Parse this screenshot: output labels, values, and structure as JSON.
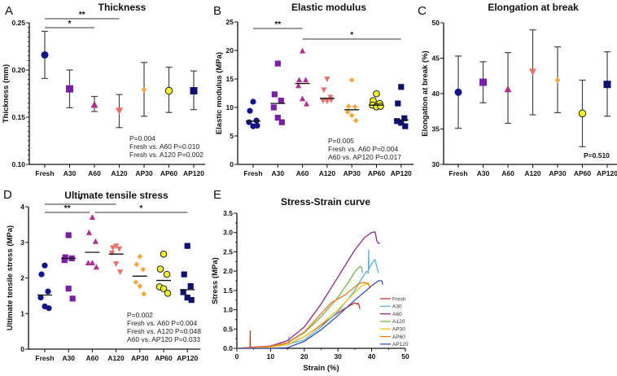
{
  "figure": {
    "categories": [
      "Fresh",
      "A30",
      "A60",
      "A120",
      "AP30",
      "AP60",
      "AP120"
    ],
    "group_styles": [
      {
        "name": "Fresh",
        "marker": "circle",
        "color": "#14148a"
      },
      {
        "name": "A30",
        "marker": "square",
        "color": "#7a1fa8"
      },
      {
        "name": "A60",
        "marker": "triangle-up",
        "color": "#b0308f"
      },
      {
        "name": "A120",
        "marker": "triangle-down",
        "color": "#e8706a"
      },
      {
        "name": "AP30",
        "marker": "diamond",
        "color": "#f7a740"
      },
      {
        "name": "AP60",
        "marker": "circle-outlined",
        "color": "#f2f22a"
      },
      {
        "name": "AP120",
        "marker": "square",
        "color": "#101070"
      }
    ]
  },
  "chart_data": [
    {
      "id": "A",
      "letter": "A",
      "type": "scatter",
      "title": "Thickness",
      "xlabel": "",
      "ylabel": "Thickness (mm)",
      "ylim": [
        0.1,
        0.25
      ],
      "yticks": [
        0.1,
        0.15,
        0.2,
        0.25
      ],
      "ytick_labels": [
        "0.10",
        "0.15",
        "0.20",
        "0.25"
      ],
      "categories": [
        "Fresh",
        "A30",
        "A60",
        "A120",
        "AP30",
        "AP60",
        "AP120"
      ],
      "mean": [
        0.216,
        0.18,
        0.163,
        0.157,
        0.179,
        0.178,
        0.178
      ],
      "error_low": [
        0.191,
        0.16,
        0.156,
        0.139,
        0.151,
        0.155,
        0.158
      ],
      "error_high": [
        0.241,
        0.2,
        0.172,
        0.174,
        0.208,
        0.203,
        0.199
      ],
      "significance": [
        {
          "from": "Fresh",
          "to": "A60",
          "label": "*"
        },
        {
          "from": "Fresh",
          "to": "A120",
          "label": "**"
        }
      ],
      "annotations": [
        "P=0.004",
        "Fresh vs. A60 P=0.010",
        "Fresh vs. A120 P=0.002"
      ],
      "grid": false
    },
    {
      "id": "B",
      "letter": "B",
      "type": "scatter",
      "title": "Elastic modulus",
      "xlabel": "",
      "ylabel": "Elastic modulus (MPa)",
      "ylim": [
        0,
        25
      ],
      "yticks": [
        0,
        5,
        10,
        15,
        20,
        25
      ],
      "ytick_labels": [
        "0",
        "5",
        "10",
        "15",
        "20",
        "25"
      ],
      "categories": [
        "Fresh",
        "A30",
        "A60",
        "A120",
        "AP30",
        "AP60",
        "AP120"
      ],
      "points": [
        [
          11.0,
          9.4,
          7.7,
          7.4,
          6.7,
          6.8
        ],
        [
          17.7,
          12.3,
          11.2,
          10.0,
          8.2,
          7.4
        ],
        [
          19.9,
          14.8,
          14.8,
          13.8,
          11.5,
          10.6
        ],
        [
          15.0,
          13.1,
          11.8,
          11.2,
          11.1,
          11.3
        ],
        [
          14.8,
          10.2,
          10.1,
          9.2,
          8.6,
          7.7
        ],
        [
          12.4,
          11.2,
          10.7,
          10.4,
          10.1,
          10.2
        ],
        [
          13.6,
          10.7,
          8.1,
          7.6,
          7.3,
          6.7
        ]
      ],
      "median": [
        7.6,
        10.7,
        14.2,
        11.6,
        9.6,
        10.4,
        7.8
      ],
      "significance": [
        {
          "from": "Fresh",
          "to": "A60",
          "label": "**"
        },
        {
          "from": "A60",
          "to": "AP120",
          "label": "*"
        }
      ],
      "annotations": [
        "P=0.005",
        "Fresh vs. A60 P=0.004",
        "A60 vs. AP120 P=0.017"
      ],
      "grid": false
    },
    {
      "id": "C",
      "letter": "C",
      "type": "scatter",
      "title": "Elongation at break",
      "xlabel": "",
      "ylabel": "Elongation at break (%)",
      "ylim": [
        30,
        50
      ],
      "yticks": [
        30,
        35,
        40,
        45,
        50
      ],
      "ytick_labels": [
        "30",
        "35",
        "40",
        "45",
        "50"
      ],
      "categories": [
        "Fresh",
        "A30",
        "A60",
        "A120",
        "AP30",
        "AP60",
        "AP120"
      ],
      "mean": [
        40.2,
        41.6,
        40.6,
        43.1,
        41.9,
        37.2,
        41.3
      ],
      "error_low": [
        35.1,
        38.7,
        35.8,
        37.0,
        37.3,
        32.5,
        36.8
      ],
      "error_high": [
        45.3,
        44.5,
        45.8,
        49.0,
        46.6,
        41.9,
        45.9
      ],
      "significance": [],
      "annotations": [
        "P=0.510"
      ],
      "grid": false
    },
    {
      "id": "D",
      "letter": "D",
      "type": "scatter",
      "title": "Ultimate tensile stress",
      "xlabel": "",
      "ylabel": "Ultimate tensile stress (MPa)",
      "ylim": [
        0,
        4
      ],
      "yticks": [
        0,
        1,
        2,
        3,
        4
      ],
      "ytick_labels": [
        "0",
        "1",
        "2",
        "3",
        "4"
      ],
      "categories": [
        "Fresh",
        "A30",
        "A60",
        "A120",
        "AP30",
        "AP60",
        "AP120"
      ],
      "points": [
        [
          2.35,
          2.1,
          1.62,
          1.45,
          1.2,
          1.15
        ],
        [
          3.2,
          2.58,
          2.55,
          2.5,
          1.7,
          1.42
        ],
        [
          3.7,
          3.27,
          3.02,
          2.42,
          2.42,
          2.3
        ],
        [
          2.9,
          2.85,
          2.82,
          2.7,
          2.4,
          2.17
        ],
        [
          2.6,
          2.38,
          2.24,
          1.88,
          1.77,
          1.55
        ],
        [
          2.67,
          2.25,
          2.1,
          1.75,
          1.7,
          1.57
        ],
        [
          2.9,
          2.1,
          1.77,
          1.6,
          1.45,
          1.38
        ]
      ],
      "median": [
        1.52,
        2.55,
        2.72,
        2.67,
        2.05,
        1.93,
        1.67
      ],
      "significance": [
        {
          "from": "Fresh",
          "to": "A120",
          "label": "*"
        },
        {
          "from": "Fresh",
          "to": "A60",
          "label": "**"
        },
        {
          "from": "A60",
          "to": "AP120",
          "label": "*"
        }
      ],
      "annotations": [
        "P=0.002",
        "Fresh vs. A60 P=0.004",
        "Fresh vs. A120 P=0.048",
        "A60 vs. AP120 P=0.033"
      ],
      "grid": false
    },
    {
      "id": "E",
      "letter": "E",
      "type": "line",
      "title": "Stress-Strain curve",
      "xlabel": "Strain (%)",
      "ylabel": "Stress (MPa)",
      "xlim": [
        0,
        50
      ],
      "ylim": [
        0,
        3.5
      ],
      "xticks": [
        0,
        10,
        20,
        30,
        40,
        50
      ],
      "xtick_labels": [
        "0",
        "10",
        "20",
        "30",
        "40",
        "50"
      ],
      "yticks": [
        0,
        0.5,
        1.0,
        1.5,
        2.0,
        2.5,
        3.0,
        3.5
      ],
      "ytick_labels": [
        "0.0",
        "0.5",
        "1.0",
        "1.5",
        "2.0",
        "2.5",
        "3.0",
        "3.5"
      ],
      "legend_position": "bottom-right",
      "grid": false,
      "series": [
        {
          "name": "Fresh",
          "color": "#c0392b",
          "x": [
            0,
            3.9,
            3.95,
            4.0,
            4.05,
            10,
            15,
            20,
            25,
            30,
            33,
            35,
            35.5,
            36,
            36.3,
            36.5
          ],
          "y": [
            0,
            0.02,
            0.45,
            0.03,
            0.03,
            0.05,
            0.1,
            0.3,
            0.6,
            0.92,
            1.08,
            1.18,
            1.15,
            1.17,
            1.1,
            1.02
          ]
        },
        {
          "name": "A30",
          "color": "#5bb5d5",
          "x": [
            0,
            10,
            15.4,
            15.5,
            15.6,
            20,
            25,
            30,
            35,
            37,
            38.5,
            39.0,
            39.1,
            39.2,
            40,
            41,
            42
          ],
          "y": [
            0,
            0.03,
            0.1,
            0.3,
            0.12,
            0.22,
            0.55,
            0.95,
            1.5,
            1.8,
            2.0,
            1.95,
            2.55,
            2.05,
            2.2,
            2.3,
            1.95
          ]
        },
        {
          "name": "A60",
          "color": "#8b2a8a",
          "x": [
            0,
            10,
            15,
            20,
            25,
            30,
            35,
            38,
            40,
            41,
            41.5,
            42,
            42.5
          ],
          "y": [
            0,
            0.06,
            0.2,
            0.55,
            1.15,
            1.85,
            2.55,
            2.88,
            3.0,
            3.02,
            2.8,
            2.72,
            2.72
          ]
        },
        {
          "name": "A120",
          "color": "#7fb04f",
          "x": [
            0,
            10,
            15,
            20,
            25,
            30,
            33,
            35,
            36.5,
            37,
            37.3
          ],
          "y": [
            0,
            0.04,
            0.14,
            0.4,
            0.82,
            1.32,
            1.7,
            1.98,
            2.12,
            2.1,
            1.95
          ]
        },
        {
          "name": "AP30",
          "color": "#f5c518",
          "x": [
            0,
            10,
            15,
            20,
            25,
            30,
            35,
            37,
            38.5,
            39.5
          ],
          "y": [
            0,
            0.03,
            0.1,
            0.3,
            0.62,
            1.0,
            1.45,
            1.62,
            1.68,
            1.62
          ]
        },
        {
          "name": "AP60",
          "color": "#ef7d22",
          "x": [
            0,
            10,
            15,
            20,
            25,
            28,
            30,
            32,
            34,
            36,
            37,
            38,
            39,
            39.5
          ],
          "y": [
            0,
            0.05,
            0.15,
            0.42,
            0.9,
            1.18,
            1.28,
            1.38,
            1.52,
            1.66,
            1.7,
            1.7,
            1.68,
            1.55
          ]
        },
        {
          "name": "AP120",
          "color": "#3b4fb8",
          "x": [
            0,
            10,
            15,
            20,
            25,
            30,
            35,
            40,
            42,
            43,
            43.3
          ],
          "y": [
            0,
            0.0,
            0.02,
            0.18,
            0.48,
            0.85,
            1.25,
            1.62,
            1.75,
            1.75,
            1.65
          ]
        }
      ]
    }
  ]
}
